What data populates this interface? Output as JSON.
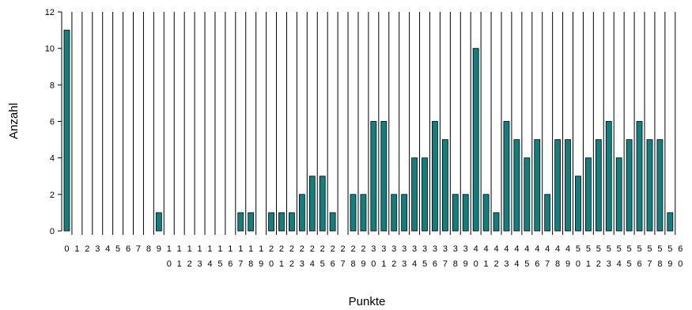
{
  "chart_data": {
    "type": "bar",
    "xlabel": "Punkte",
    "ylabel": "Anzahl",
    "ylim": [
      0,
      12
    ],
    "yticks": [
      0,
      2,
      4,
      6,
      8,
      10,
      12
    ],
    "grid": "vertical",
    "bar_color": "#0f7f7f",
    "categories": [
      "0",
      "1",
      "2",
      "3",
      "4",
      "5",
      "6",
      "7",
      "8",
      "9",
      "10",
      "11",
      "12",
      "13",
      "14",
      "15",
      "16",
      "17",
      "18",
      "19",
      "20",
      "21",
      "22",
      "23",
      "24",
      "25",
      "26",
      "27",
      "28",
      "29",
      "30",
      "31",
      "32",
      "33",
      "34",
      "35",
      "36",
      "37",
      "38",
      "39",
      "40",
      "41",
      "42",
      "43",
      "44",
      "45",
      "46",
      "47",
      "48",
      "49",
      "50",
      "51",
      "52",
      "53",
      "54",
      "55",
      "56",
      "57",
      "58",
      "59",
      "60"
    ],
    "values": [
      11,
      0,
      0,
      0,
      0,
      0,
      0,
      0,
      0,
      1,
      0,
      0,
      0,
      0,
      0,
      0,
      0,
      1,
      1,
      0,
      1,
      1,
      1,
      2,
      3,
      3,
      1,
      0,
      2,
      2,
      6,
      6,
      2,
      2,
      4,
      4,
      6,
      5,
      2,
      2,
      10,
      2,
      1,
      6,
      5,
      4,
      5,
      2,
      5,
      5,
      3,
      4,
      5,
      6,
      4,
      5,
      6,
      5,
      5,
      1,
      0
    ]
  }
}
